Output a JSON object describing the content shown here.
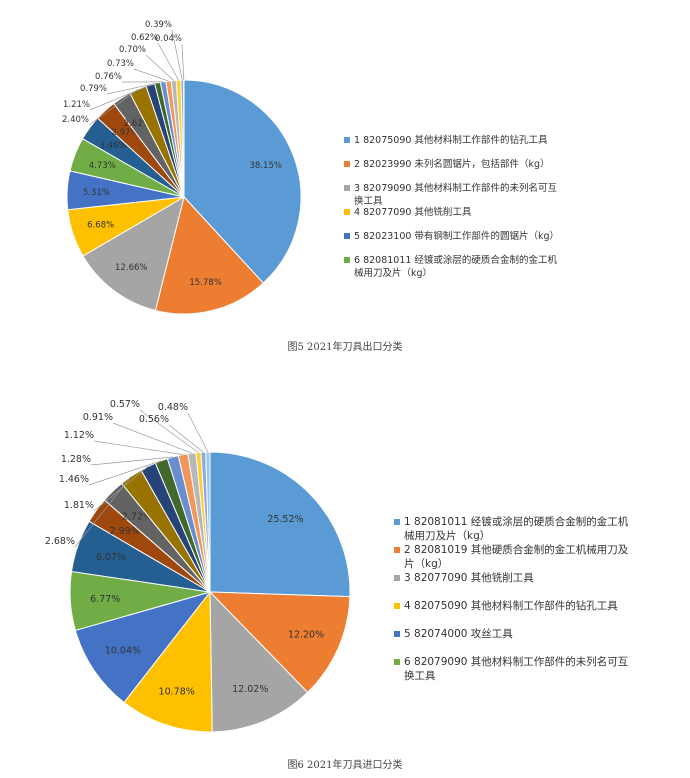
{
  "chart_data": [
    {
      "type": "pie",
      "caption": "图5  2021年刀具出口分类",
      "values": [
        38.15,
        15.78,
        12.66,
        6.68,
        5.31,
        4.73,
        3.46,
        2.97,
        2.62,
        2.4,
        1.21,
        0.79,
        0.76,
        0.73,
        0.7,
        0.62,
        0.39,
        0.04
      ],
      "labels": [
        "38.15%",
        "15.78%",
        "12.66%",
        "6.68%",
        "5.31%",
        "4.73%",
        "3.46%",
        "2.97%",
        "2.62%",
        "2.40%",
        "1.21%",
        "0.79%",
        "0.76%",
        "0.73%",
        "0.70%",
        "0.62%",
        "0.39%",
        "0.04%"
      ],
      "colors": [
        "#5B9BD5",
        "#ED7D31",
        "#A5A5A5",
        "#FFC000",
        "#4472C4",
        "#70AD47",
        "#255E91",
        "#9E480E",
        "#636363",
        "#997300",
        "#264478",
        "#43682B",
        "#698ED0",
        "#F1975A",
        "#B7B7B7",
        "#FFCD33",
        "#8FAADC",
        "#9DC3E6"
      ],
      "legend": [
        {
          "line1": "1 82075090 其他材料制工作部件的钻孔工具",
          "line2": ""
        },
        {
          "line1": "2 82023990 未列名圆锯片，包括部件（kg）",
          "line2": ""
        },
        {
          "line1": "3 82079090 其他材料制工作部件的未列名可互",
          "line2": "换工具"
        },
        {
          "line1": "4 82077090 其他铣削工具",
          "line2": ""
        },
        {
          "line1": "5 82023100 带有钢制工作部件的圆锯片（kg）",
          "line2": ""
        },
        {
          "line1": "6 82081011 经镀或涂层的硬质合金制的金工机",
          "line2": "械用刀及片（kg）"
        }
      ]
    },
    {
      "type": "pie",
      "caption": "图6  2021年刀具进口分类",
      "values": [
        25.52,
        12.2,
        12.02,
        10.78,
        10.04,
        6.77,
        6.07,
        2.99,
        2.72,
        2.68,
        1.81,
        1.46,
        1.28,
        1.12,
        0.91,
        0.57,
        0.56,
        0.48
      ],
      "labels": [
        "25.52%",
        "12.20%",
        "12.02%",
        "10.78%",
        "10.04%",
        "6.77%",
        "6.07%",
        "2.99%",
        "2.72%",
        "2.68%",
        "1.81%",
        "1.46%",
        "1.28%",
        "1.12%",
        "0.91%",
        "0.57%",
        "0.56%",
        "0.48%"
      ],
      "colors": [
        "#5B9BD5",
        "#ED7D31",
        "#A5A5A5",
        "#FFC000",
        "#4472C4",
        "#70AD47",
        "#255E91",
        "#9E480E",
        "#636363",
        "#997300",
        "#264478",
        "#43682B",
        "#698ED0",
        "#F1975A",
        "#B7B7B7",
        "#FFCD33",
        "#8FAADC",
        "#9DC3E6"
      ],
      "legend": [
        {
          "line1": "1 82081011 经镀或涂层的硬质合金制的金工机",
          "line2": "械用刀及片（kg）"
        },
        {
          "line1": "2 82081019 其他硬质合金制的金工机械用刀及",
          "line2": "片（kg）"
        },
        {
          "line1": "3 82077090 其他铣削工具",
          "line2": ""
        },
        {
          "line1": "4 82075090 其他材料制工作部件的钻孔工具",
          "line2": ""
        },
        {
          "line1": "5 82074000 攻丝工具",
          "line2": ""
        },
        {
          "line1": "6 82079090 其他材料制工作部件的未列名可互",
          "line2": "换工具"
        }
      ]
    }
  ]
}
